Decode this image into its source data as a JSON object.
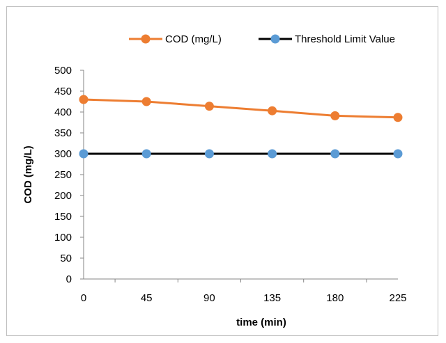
{
  "chart_data": {
    "type": "line",
    "x": [
      0,
      45,
      90,
      135,
      180,
      225
    ],
    "xlabel": "time (min)",
    "ylabel": "COD (mg/L)",
    "ylim": [
      0,
      500
    ],
    "yticks": [
      0,
      50,
      100,
      150,
      200,
      250,
      300,
      350,
      400,
      450,
      500
    ],
    "xticks": [
      0,
      45,
      90,
      135,
      180,
      225
    ],
    "grid": false,
    "legend_position": "top",
    "series": [
      {
        "name": "COD (mg/L)",
        "values": [
          430,
          425,
          414,
          403,
          391,
          387
        ],
        "color": "#ED7D31",
        "marker_color": "#ED7D31"
      },
      {
        "name": "Threshold Limit Value",
        "values": [
          300,
          300,
          300,
          300,
          300,
          300
        ],
        "color": "#000000",
        "marker_color": "#5B9BD5"
      }
    ]
  }
}
